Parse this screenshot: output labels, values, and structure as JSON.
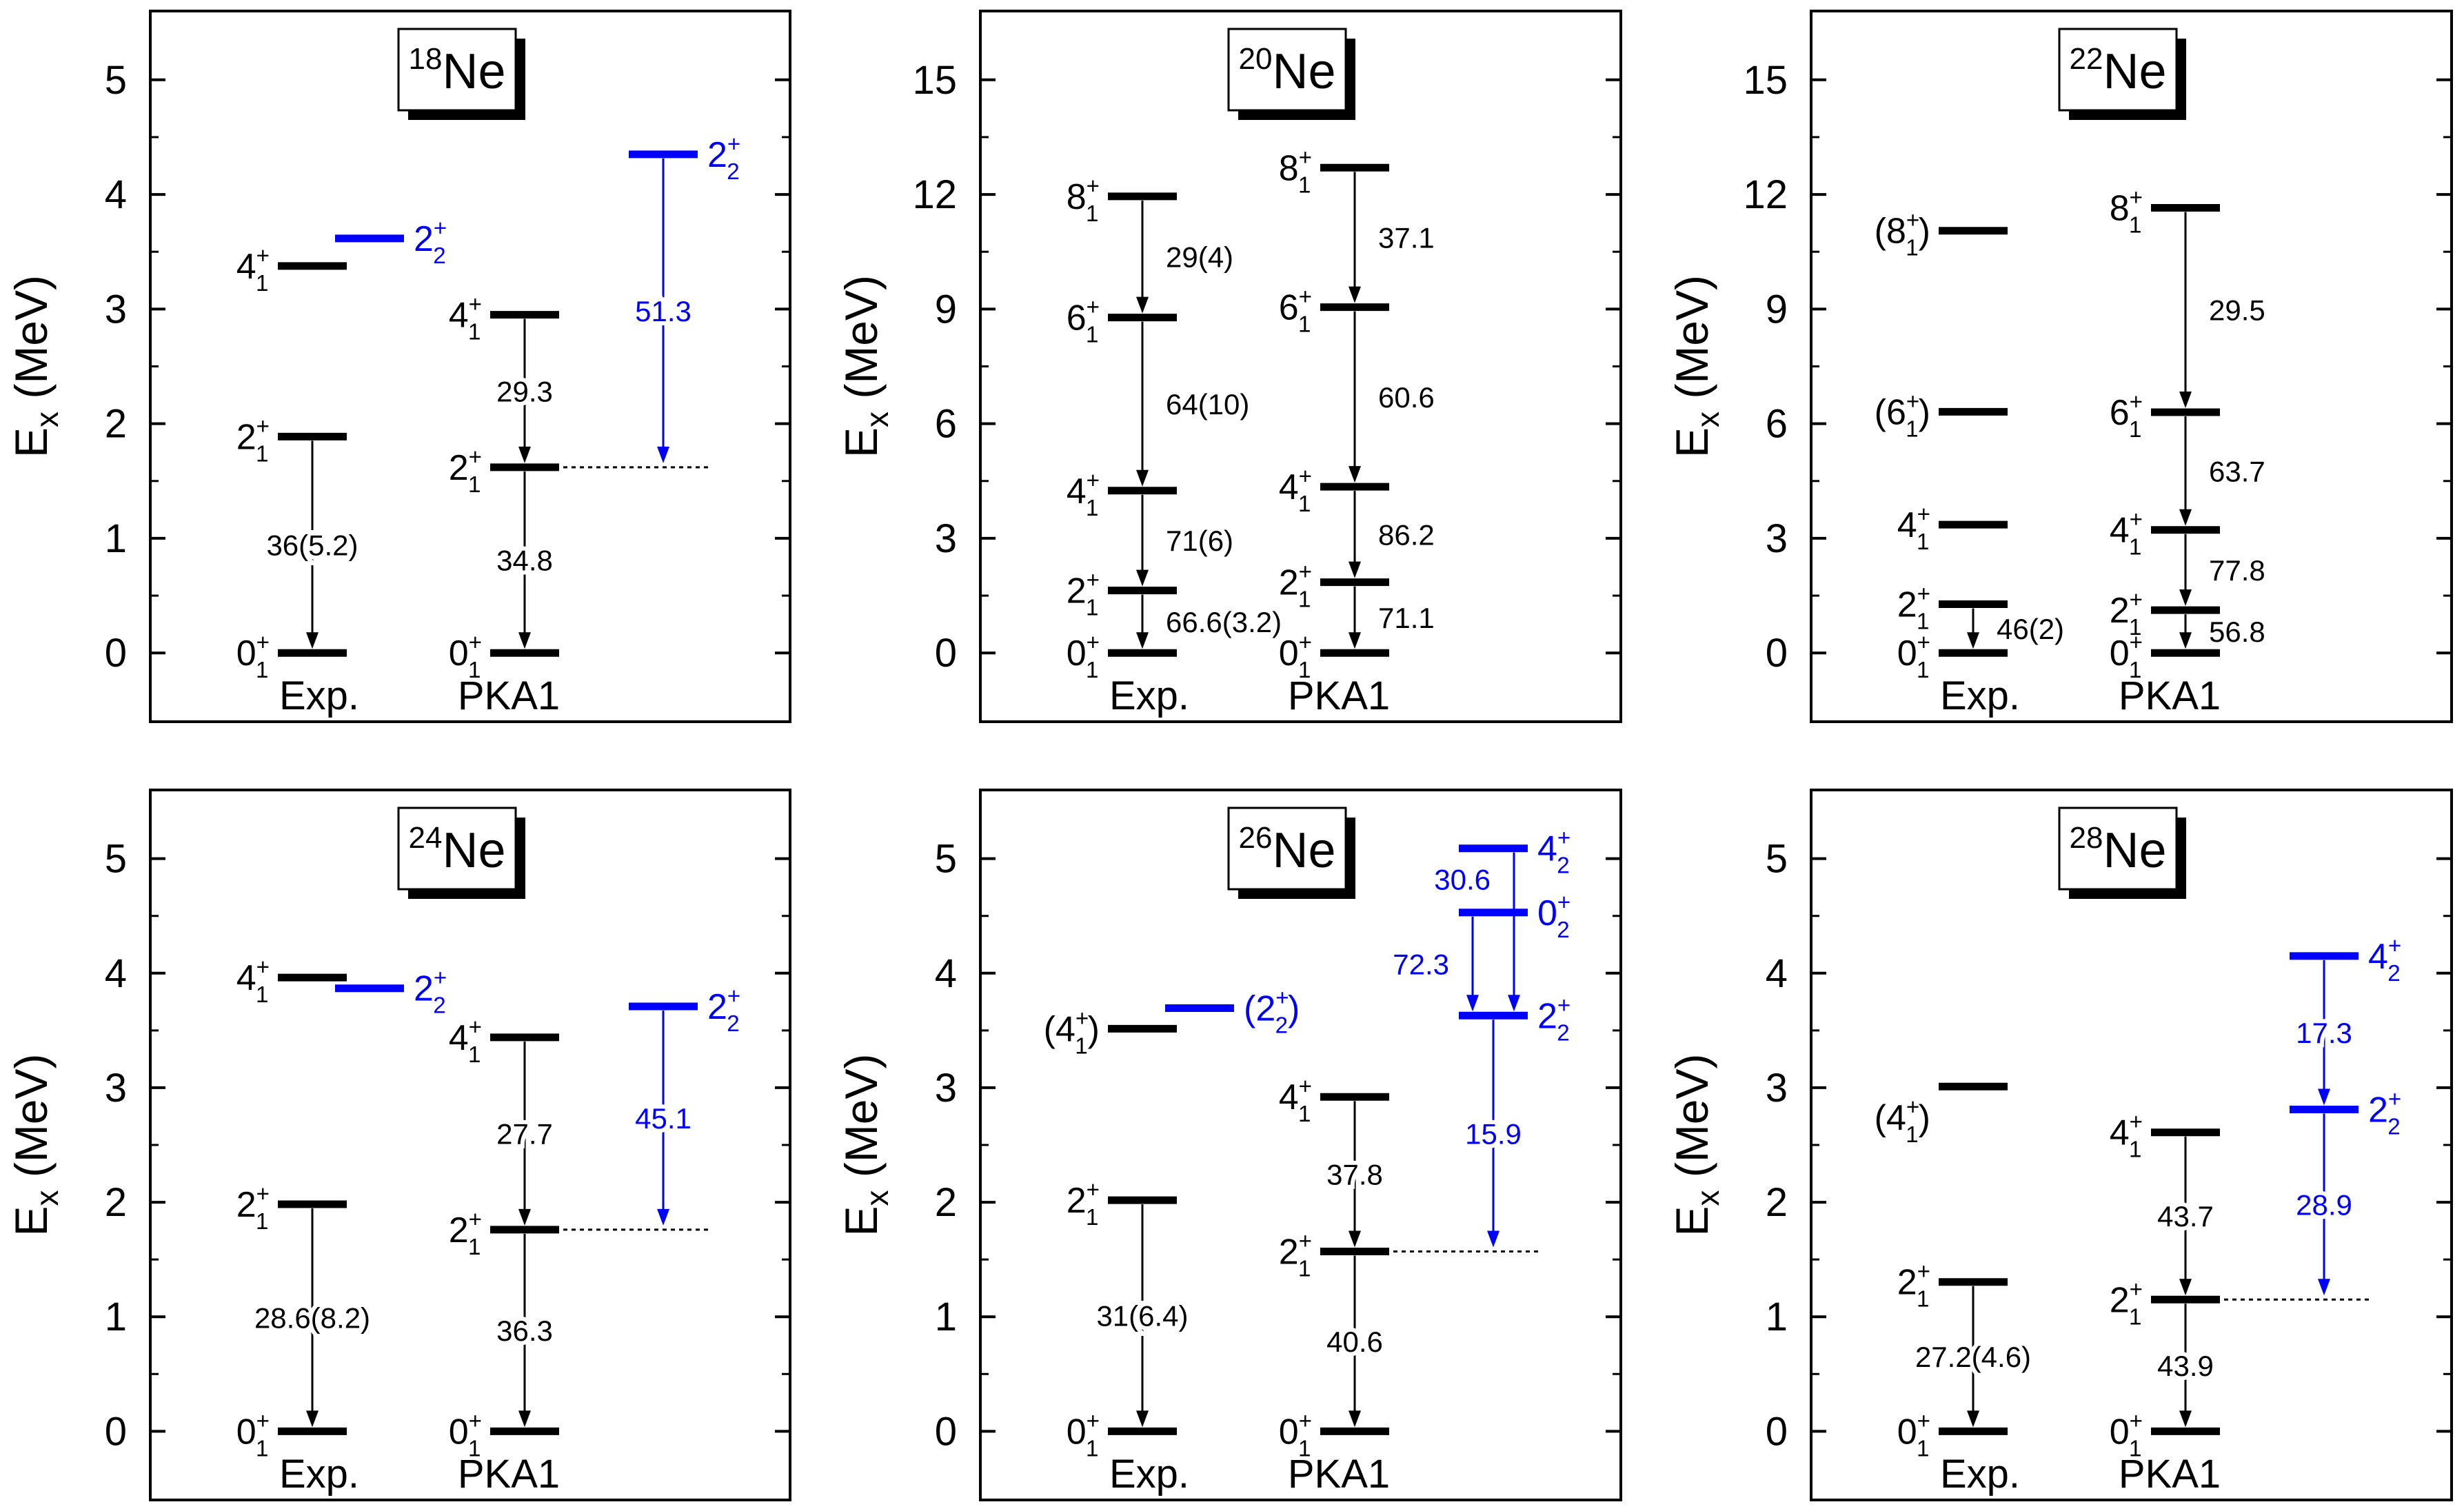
{
  "figure": {
    "y_axis_label_main": "E",
    "y_axis_label_sub": "x",
    "y_axis_label_unit": " (MeV)"
  },
  "colors": {
    "black": "#000000",
    "blue": "#0000ff",
    "frame": "#000000"
  },
  "chart_data": [
    {
      "type": "level-scheme",
      "nucleus_mass": "18",
      "nucleus_symbol": "Ne",
      "ylim": [
        -0.6,
        5.6
      ],
      "yticks": [
        0,
        1,
        2,
        3,
        4,
        5
      ],
      "ytick_labels": [
        "0",
        "1",
        "2",
        "3",
        "4",
        "5"
      ],
      "columns": {
        "exp": "Exp.",
        "theory": "PKA1"
      },
      "levels": [
        {
          "col": "exp",
          "energy": 0.0,
          "j": "0",
          "sup": "+",
          "sub": "1",
          "color": "black"
        },
        {
          "col": "exp",
          "energy": 1.887,
          "j": "2",
          "sup": "+",
          "sub": "1",
          "color": "black"
        },
        {
          "col": "exp",
          "energy": 3.376,
          "j": "4",
          "sup": "+",
          "sub": "1",
          "color": "black"
        },
        {
          "col": "exp2",
          "energy": 3.616,
          "j": "2",
          "sup": "+",
          "sub": "2",
          "color": "blue",
          "label_side": "right"
        },
        {
          "col": "theory",
          "energy": 0.0,
          "j": "0",
          "sup": "+",
          "sub": "1",
          "color": "black"
        },
        {
          "col": "theory",
          "energy": 1.62,
          "j": "2",
          "sup": "+",
          "sub": "1",
          "color": "black",
          "dotted": true
        },
        {
          "col": "theory",
          "energy": 2.95,
          "j": "4",
          "sup": "+",
          "sub": "1",
          "color": "black"
        },
        {
          "col": "theory2",
          "energy": 4.35,
          "j": "2",
          "sup": "+",
          "sub": "2",
          "color": "blue",
          "label_side": "right"
        }
      ],
      "transitions": [
        {
          "col": "exp",
          "from": 1.887,
          "to": 0.0,
          "value": "36(5.2)",
          "color": "black",
          "label_pos": "center"
        },
        {
          "col": "theory",
          "from": 1.62,
          "to": 0.0,
          "value": "34.8",
          "color": "black",
          "label_pos": "center"
        },
        {
          "col": "theory",
          "from": 2.95,
          "to": 1.62,
          "value": "29.3",
          "color": "black",
          "label_pos": "center"
        },
        {
          "col": "theory2",
          "from": 4.35,
          "to": 1.62,
          "value": "51.3",
          "color": "blue",
          "label_pos": "center"
        }
      ]
    },
    {
      "type": "level-scheme",
      "nucleus_mass": "20",
      "nucleus_symbol": "Ne",
      "ylim": [
        -1.8,
        16.8
      ],
      "yticks": [
        0,
        3,
        6,
        9,
        12,
        15
      ],
      "ytick_labels": [
        "0",
        "3",
        "6",
        "9",
        "12",
        "15"
      ],
      "columns": {
        "exp": "Exp.",
        "theory": "PKA1"
      },
      "levels": [
        {
          "col": "exp",
          "energy": 0.0,
          "j": "0",
          "sup": "+",
          "sub": "1",
          "color": "black"
        },
        {
          "col": "exp",
          "energy": 1.634,
          "j": "2",
          "sup": "+",
          "sub": "1",
          "color": "black"
        },
        {
          "col": "exp",
          "energy": 4.248,
          "j": "4",
          "sup": "+",
          "sub": "1",
          "color": "black"
        },
        {
          "col": "exp",
          "energy": 8.778,
          "j": "6",
          "sup": "+",
          "sub": "1",
          "color": "black"
        },
        {
          "col": "exp",
          "energy": 11.95,
          "j": "8",
          "sup": "+",
          "sub": "1",
          "color": "black"
        },
        {
          "col": "theory",
          "energy": 0.0,
          "j": "0",
          "sup": "+",
          "sub": "1",
          "color": "black"
        },
        {
          "col": "theory",
          "energy": 1.85,
          "j": "2",
          "sup": "+",
          "sub": "1",
          "color": "black"
        },
        {
          "col": "theory",
          "energy": 4.35,
          "j": "4",
          "sup": "+",
          "sub": "1",
          "color": "black"
        },
        {
          "col": "theory",
          "energy": 9.05,
          "j": "6",
          "sup": "+",
          "sub": "1",
          "color": "black"
        },
        {
          "col": "theory",
          "energy": 12.7,
          "j": "8",
          "sup": "+",
          "sub": "1",
          "color": "black"
        }
      ],
      "transitions": [
        {
          "col": "exp",
          "from": 1.634,
          "to": 0.0,
          "value": "66.6(3.2)",
          "color": "black",
          "label_pos": "right"
        },
        {
          "col": "exp",
          "from": 4.248,
          "to": 1.634,
          "value": "71(6)",
          "color": "black",
          "label_pos": "right"
        },
        {
          "col": "exp",
          "from": 8.778,
          "to": 4.248,
          "value": "64(10)",
          "color": "black",
          "label_pos": "right"
        },
        {
          "col": "exp",
          "from": 11.95,
          "to": 8.778,
          "value": "29(4)",
          "color": "black",
          "label_pos": "right"
        },
        {
          "col": "theory",
          "from": 1.85,
          "to": 0.0,
          "value": "71.1",
          "color": "black",
          "label_pos": "right"
        },
        {
          "col": "theory",
          "from": 4.35,
          "to": 1.85,
          "value": "86.2",
          "color": "black",
          "label_pos": "right"
        },
        {
          "col": "theory",
          "from": 9.05,
          "to": 4.35,
          "value": "60.6",
          "color": "black",
          "label_pos": "right"
        },
        {
          "col": "theory",
          "from": 12.7,
          "to": 9.05,
          "value": "37.1",
          "color": "black",
          "label_pos": "right"
        }
      ]
    },
    {
      "type": "level-scheme",
      "nucleus_mass": "22",
      "nucleus_symbol": "Ne",
      "ylim": [
        -1.8,
        16.8
      ],
      "yticks": [
        0,
        3,
        6,
        9,
        12,
        15
      ],
      "ytick_labels": [
        "0",
        "3",
        "6",
        "9",
        "12",
        "15"
      ],
      "columns": {
        "exp": "Exp.",
        "theory": "PKA1"
      },
      "levels": [
        {
          "col": "exp",
          "energy": 0.0,
          "j": "0",
          "sup": "+",
          "sub": "1",
          "color": "black"
        },
        {
          "col": "exp",
          "energy": 1.275,
          "j": "2",
          "sup": "+",
          "sub": "1",
          "color": "black"
        },
        {
          "col": "exp",
          "energy": 3.358,
          "j": "4",
          "sup": "+",
          "sub": "1",
          "color": "black"
        },
        {
          "col": "exp",
          "energy": 6.311,
          "j": "6",
          "sup": "+",
          "sub": "1",
          "color": "black",
          "paren": true
        },
        {
          "col": "exp",
          "energy": 11.05,
          "j": "8",
          "sup": "+",
          "sub": "1",
          "color": "black",
          "paren": true
        },
        {
          "col": "theory",
          "energy": 0.0,
          "j": "0",
          "sup": "+",
          "sub": "1",
          "color": "black"
        },
        {
          "col": "theory",
          "energy": 1.12,
          "j": "2",
          "sup": "+",
          "sub": "1",
          "color": "black"
        },
        {
          "col": "theory",
          "energy": 3.22,
          "j": "4",
          "sup": "+",
          "sub": "1",
          "color": "black"
        },
        {
          "col": "theory",
          "energy": 6.3,
          "j": "6",
          "sup": "+",
          "sub": "1",
          "color": "black"
        },
        {
          "col": "theory",
          "energy": 11.65,
          "j": "8",
          "sup": "+",
          "sub": "1",
          "color": "black"
        }
      ],
      "transitions": [
        {
          "col": "exp",
          "from": 1.275,
          "to": 0.0,
          "value": "46(2)",
          "color": "black",
          "label_pos": "right"
        },
        {
          "col": "theory",
          "from": 1.12,
          "to": 0.0,
          "value": "56.8",
          "color": "black",
          "label_pos": "right"
        },
        {
          "col": "theory",
          "from": 3.22,
          "to": 1.12,
          "value": "77.8",
          "color": "black",
          "label_pos": "right"
        },
        {
          "col": "theory",
          "from": 6.3,
          "to": 3.22,
          "value": "63.7",
          "color": "black",
          "label_pos": "right"
        },
        {
          "col": "theory",
          "from": 11.65,
          "to": 6.3,
          "value": "29.5",
          "color": "black",
          "label_pos": "right"
        }
      ]
    },
    {
      "type": "level-scheme",
      "nucleus_mass": "24",
      "nucleus_symbol": "Ne",
      "ylim": [
        -0.6,
        5.6
      ],
      "yticks": [
        0,
        1,
        2,
        3,
        4,
        5
      ],
      "ytick_labels": [
        "0",
        "1",
        "2",
        "3",
        "4",
        "5"
      ],
      "columns": {
        "exp": "Exp.",
        "theory": "PKA1"
      },
      "levels": [
        {
          "col": "exp",
          "energy": 0.0,
          "j": "0",
          "sup": "+",
          "sub": "1",
          "color": "black"
        },
        {
          "col": "exp",
          "energy": 1.982,
          "j": "2",
          "sup": "+",
          "sub": "1",
          "color": "black"
        },
        {
          "col": "exp",
          "energy": 3.962,
          "j": "4",
          "sup": "+",
          "sub": "1",
          "color": "black"
        },
        {
          "col": "exp2",
          "energy": 3.868,
          "j": "2",
          "sup": "+",
          "sub": "2",
          "color": "blue",
          "label_side": "right"
        },
        {
          "col": "theory",
          "energy": 0.0,
          "j": "0",
          "sup": "+",
          "sub": "1",
          "color": "black"
        },
        {
          "col": "theory",
          "energy": 1.76,
          "j": "2",
          "sup": "+",
          "sub": "1",
          "color": "black",
          "dotted": true
        },
        {
          "col": "theory",
          "energy": 3.44,
          "j": "4",
          "sup": "+",
          "sub": "1",
          "color": "black"
        },
        {
          "col": "theory2",
          "energy": 3.71,
          "j": "2",
          "sup": "+",
          "sub": "2",
          "color": "blue",
          "label_side": "right"
        }
      ],
      "transitions": [
        {
          "col": "exp",
          "from": 1.982,
          "to": 0.0,
          "value": "28.6(8.2)",
          "color": "black",
          "label_pos": "center"
        },
        {
          "col": "theory",
          "from": 1.76,
          "to": 0.0,
          "value": "36.3",
          "color": "black",
          "label_pos": "center"
        },
        {
          "col": "theory",
          "from": 3.44,
          "to": 1.76,
          "value": "27.7",
          "color": "black",
          "label_pos": "center"
        },
        {
          "col": "theory2",
          "from": 3.71,
          "to": 1.76,
          "value": "45.1",
          "color": "blue",
          "label_pos": "center"
        }
      ]
    },
    {
      "type": "level-scheme",
      "nucleus_mass": "26",
      "nucleus_symbol": "Ne",
      "ylim": [
        -0.6,
        5.6
      ],
      "yticks": [
        0,
        1,
        2,
        3,
        4,
        5
      ],
      "ytick_labels": [
        "0",
        "1",
        "2",
        "3",
        "4",
        "5"
      ],
      "columns": {
        "exp": "Exp.",
        "theory": "PKA1"
      },
      "levels": [
        {
          "col": "exp",
          "energy": 0.0,
          "j": "0",
          "sup": "+",
          "sub": "1",
          "color": "black"
        },
        {
          "col": "exp",
          "energy": 2.018,
          "j": "2",
          "sup": "+",
          "sub": "1",
          "color": "black"
        },
        {
          "col": "exp",
          "energy": 3.515,
          "j": "4",
          "sup": "+",
          "sub": "1",
          "color": "black",
          "paren": true
        },
        {
          "col": "exp2",
          "energy": 3.695,
          "j": "2",
          "sup": "+",
          "sub": "2",
          "color": "blue",
          "label_side": "right",
          "paren": true
        },
        {
          "col": "theory",
          "energy": 0.0,
          "j": "0",
          "sup": "+",
          "sub": "1",
          "color": "black"
        },
        {
          "col": "theory",
          "energy": 1.57,
          "j": "2",
          "sup": "+",
          "sub": "1",
          "color": "black",
          "dotted": true
        },
        {
          "col": "theory",
          "energy": 2.92,
          "j": "4",
          "sup": "+",
          "sub": "1",
          "color": "black"
        },
        {
          "col": "theory2",
          "energy": 3.63,
          "j": "2",
          "sup": "+",
          "sub": "2",
          "color": "blue",
          "label_side": "right"
        },
        {
          "col": "theory2",
          "energy": 4.53,
          "j": "0",
          "sup": "+",
          "sub": "2",
          "color": "blue",
          "label_side": "right"
        },
        {
          "col": "theory2",
          "energy": 5.09,
          "j": "4",
          "sup": "+",
          "sub": "2",
          "color": "blue",
          "label_side": "right"
        }
      ],
      "transitions": [
        {
          "col": "exp",
          "from": 2.018,
          "to": 0.0,
          "value": "31(6.4)",
          "color": "black",
          "label_pos": "center"
        },
        {
          "col": "theory",
          "from": 1.57,
          "to": 0.0,
          "value": "40.6",
          "color": "black",
          "label_pos": "center"
        },
        {
          "col": "theory",
          "from": 2.92,
          "to": 1.57,
          "value": "37.8",
          "color": "black",
          "label_pos": "center"
        },
        {
          "col": "theory2",
          "from": 3.63,
          "to": 1.57,
          "value": "15.9",
          "color": "blue",
          "label_pos": "center"
        },
        {
          "col": "theory2",
          "from": 4.53,
          "to": 3.63,
          "value": "72.3",
          "color": "blue",
          "label_pos": "left",
          "offset": -30
        },
        {
          "col": "theory2",
          "from": 5.09,
          "to": 3.63,
          "value": "30.6",
          "color": "blue",
          "label_pos": "left",
          "offset": 30,
          "label_at": 4.82
        }
      ]
    },
    {
      "type": "level-scheme",
      "nucleus_mass": "28",
      "nucleus_symbol": "Ne",
      "ylim": [
        -0.6,
        5.6
      ],
      "yticks": [
        0,
        1,
        2,
        3,
        4,
        5
      ],
      "ytick_labels": [
        "0",
        "1",
        "2",
        "3",
        "4",
        "5"
      ],
      "columns": {
        "exp": "Exp.",
        "theory": "PKA1"
      },
      "levels": [
        {
          "col": "exp",
          "energy": 0.0,
          "j": "0",
          "sup": "+",
          "sub": "1",
          "color": "black"
        },
        {
          "col": "exp",
          "energy": 1.304,
          "j": "2",
          "sup": "+",
          "sub": "1",
          "color": "black"
        },
        {
          "col": "exp",
          "energy": 3.01,
          "j": "4",
          "sup": "+",
          "sub": "1",
          "color": "black",
          "paren": true,
          "label_dy": 0.27
        },
        {
          "col": "theory",
          "energy": 0.0,
          "j": "0",
          "sup": "+",
          "sub": "1",
          "color": "black"
        },
        {
          "col": "theory",
          "energy": 1.15,
          "j": "2",
          "sup": "+",
          "sub": "1",
          "color": "black",
          "dotted": true
        },
        {
          "col": "theory",
          "energy": 2.61,
          "j": "4",
          "sup": "+",
          "sub": "1",
          "color": "black"
        },
        {
          "col": "theory2",
          "energy": 2.81,
          "j": "2",
          "sup": "+",
          "sub": "2",
          "color": "blue",
          "label_side": "right"
        },
        {
          "col": "theory2",
          "energy": 4.15,
          "j": "4",
          "sup": "+",
          "sub": "2",
          "color": "blue",
          "label_side": "right"
        }
      ],
      "transitions": [
        {
          "col": "exp",
          "from": 1.304,
          "to": 0.0,
          "value": "27.2(4.6)",
          "color": "black",
          "label_pos": "center"
        },
        {
          "col": "theory",
          "from": 1.15,
          "to": 0.0,
          "value": "43.9",
          "color": "black",
          "label_pos": "center"
        },
        {
          "col": "theory",
          "from": 2.61,
          "to": 1.15,
          "value": "43.7",
          "color": "black",
          "label_pos": "center"
        },
        {
          "col": "theory2",
          "from": 2.81,
          "to": 1.15,
          "value": "28.9",
          "color": "blue",
          "label_pos": "center"
        },
        {
          "col": "theory2",
          "from": 4.15,
          "to": 2.81,
          "value": "17.3",
          "color": "blue",
          "label_pos": "center"
        }
      ]
    }
  ]
}
